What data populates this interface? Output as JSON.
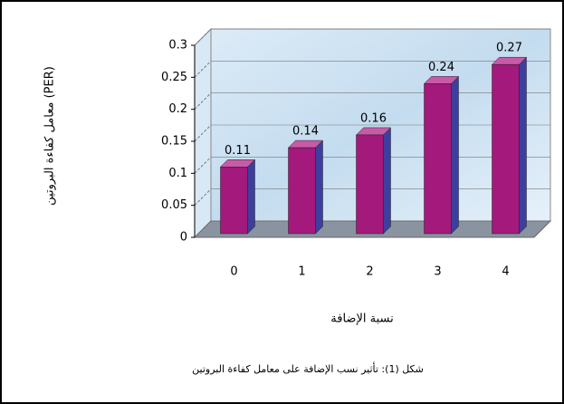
{
  "chart_data": {
    "type": "bar3d",
    "ylabel": "معامل كفاءة البروتين (PER)",
    "xlabel": "نسبة الإضافة",
    "caption": "شكل (1): تأثير نسب الإضافة على معامل كفاءة البروتين",
    "categories": [
      "0",
      "1",
      "2",
      "3",
      "4"
    ],
    "values": [
      0.11,
      0.14,
      0.16,
      0.24,
      0.27
    ],
    "color": "#a3197c",
    "ylim": [
      0,
      0.3
    ],
    "yticks": [
      0,
      0.05,
      0.1,
      0.15,
      0.2,
      0.25,
      0.3
    ],
    "grid": true
  }
}
